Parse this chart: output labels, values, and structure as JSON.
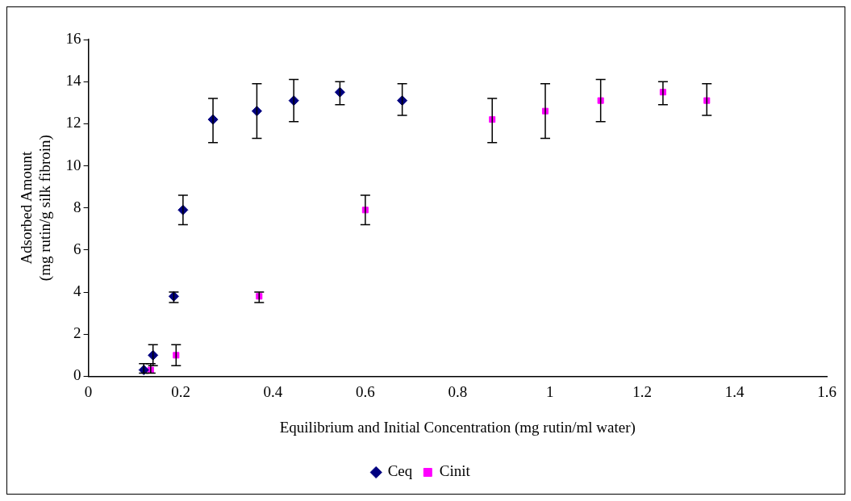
{
  "chart_data": {
    "type": "scatter",
    "xlabel": "Equilibrium and Initial Concentration (mg rutin/ml water)",
    "ylabel": "Adsorbed Amount\n(mg rutin/g silk fibroin)",
    "xlim": [
      0,
      1.6
    ],
    "xticks": [
      0,
      0.2,
      0.4,
      0.6,
      0.8,
      1,
      1.2,
      1.4,
      1.6
    ],
    "ylim": [
      0,
      16
    ],
    "yticks": [
      0,
      2,
      4,
      6,
      8,
      10,
      12,
      14,
      16
    ],
    "grid": false,
    "legend": "bottom",
    "series": [
      {
        "name": "Ceq",
        "color": "#000080",
        "marker": "diamond",
        "x": [
          0.12,
          0.14,
          0.185,
          0.205,
          0.27,
          0.365,
          0.445,
          0.545,
          0.68
        ],
        "values": [
          0.3,
          1.0,
          3.8,
          7.9,
          12.2,
          12.6,
          13.1,
          13.5,
          13.1
        ],
        "errors": [
          [
            0.15,
            0.6
          ],
          [
            0.5,
            1.5
          ],
          [
            3.5,
            4.0
          ],
          [
            7.2,
            8.6
          ],
          [
            11.1,
            13.2
          ],
          [
            11.3,
            13.9
          ],
          [
            12.1,
            14.1
          ],
          [
            12.9,
            14.0
          ],
          [
            12.4,
            13.9
          ]
        ]
      },
      {
        "name": "Cinit",
        "color": "#ff00ff",
        "marker": "square",
        "x": [
          0.135,
          0.19,
          0.37,
          0.6,
          0.875,
          0.99,
          1.11,
          1.245,
          1.34
        ],
        "values": [
          0.3,
          1.0,
          3.8,
          7.9,
          12.2,
          12.6,
          13.1,
          13.5,
          13.1
        ],
        "errors": [
          [
            0.15,
            0.6
          ],
          [
            0.5,
            1.5
          ],
          [
            3.5,
            4.0
          ],
          [
            7.2,
            8.6
          ],
          [
            11.1,
            13.2
          ],
          [
            11.3,
            13.9
          ],
          [
            12.1,
            14.1
          ],
          [
            12.9,
            14.0
          ],
          [
            12.4,
            13.9
          ]
        ]
      }
    ]
  }
}
